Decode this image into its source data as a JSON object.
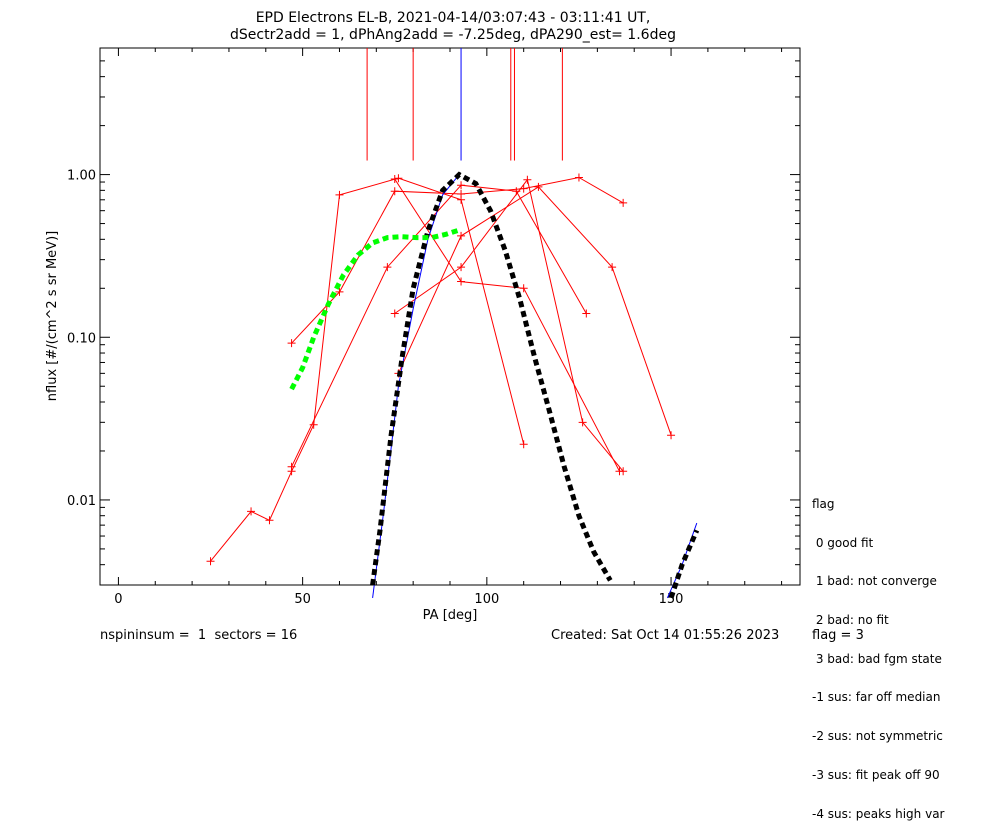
{
  "chart_data": {
    "type": "line",
    "title": "EPD Electrons EL-B, 2021-04-14/03:07:43 - 03:11:41 UT,",
    "subtitle": "dSectr2add = 1, dPhAng2add = -7.25deg, dPA290_est=   1.6deg",
    "xlabel": "PA [deg]",
    "ylabel": "nflux [#/(cm^2 s sr MeV)]",
    "xlim": [
      -5,
      185
    ],
    "ylim": [
      0.003,
      6.0
    ],
    "y_scale": "log",
    "x_ticks": [
      0,
      50,
      100,
      150
    ],
    "x_tick_labels": [
      "0",
      "50",
      "100",
      "150"
    ],
    "y_ticks": [
      0.01,
      0.1,
      1.0
    ],
    "y_tick_labels": [
      "0.01",
      "0.10",
      "1.00"
    ],
    "series": [
      {
        "color": "#ff0000",
        "style": "line-plus",
        "x": [
          25,
          36,
          41,
          47,
          53,
          60,
          76,
          93,
          110
        ],
        "y": [
          0.0042,
          0.0085,
          0.0075,
          0.015,
          0.029,
          0.75,
          0.95,
          0.7,
          0.022
        ]
      },
      {
        "color": "#ff0000",
        "style": "line-plus",
        "x": [
          47,
          60,
          75,
          93,
          110,
          125,
          137
        ],
        "y": [
          0.092,
          0.19,
          0.79,
          0.76,
          0.82,
          0.96,
          0.67
        ]
      },
      {
        "color": "#ff0000",
        "style": "line-plus",
        "x": [
          47,
          73,
          93,
          108,
          127
        ],
        "y": [
          0.016,
          0.27,
          0.86,
          0.79,
          0.14
        ]
      },
      {
        "color": "#ff0000",
        "style": "line-plus",
        "x": [
          75,
          93,
          111,
          126,
          137
        ],
        "y": [
          0.14,
          0.27,
          0.93,
          0.03,
          0.015
        ]
      },
      {
        "color": "#ff0000",
        "style": "line-plus",
        "x": [
          76,
          93,
          114,
          134,
          150
        ],
        "y": [
          0.06,
          0.42,
          0.84,
          0.27,
          0.025
        ]
      },
      {
        "color": "#ff0000",
        "style": "line-plus",
        "x": [
          75,
          93,
          110,
          136
        ],
        "y": [
          0.94,
          0.22,
          0.2,
          0.015
        ]
      },
      {
        "color": "#0000ff",
        "style": "line",
        "x": [
          69,
          72,
          76,
          80,
          84,
          88,
          92.5
        ],
        "y": [
          0.0025,
          0.0085,
          0.05,
          0.15,
          0.4,
          0.75,
          1.0
        ]
      },
      {
        "color": "#0000ff",
        "style": "line",
        "x": [
          149,
          153,
          157
        ],
        "y": [
          0.0025,
          0.004,
          0.0072
        ]
      },
      {
        "color": "#000000",
        "style": "dashed-thick",
        "x": [
          69,
          71,
          74,
          77,
          80,
          84,
          88,
          92.5,
          97,
          101,
          105,
          109,
          113,
          117,
          121,
          125,
          129,
          133.5
        ],
        "y": [
          0.003,
          0.0065,
          0.025,
          0.075,
          0.2,
          0.45,
          0.8,
          1.0,
          0.88,
          0.6,
          0.34,
          0.17,
          0.075,
          0.035,
          0.016,
          0.008,
          0.0048,
          0.0032
        ]
      },
      {
        "color": "#000000",
        "style": "dashed-thick",
        "x": [
          150,
          153,
          157
        ],
        "y": [
          0.0025,
          0.004,
          0.0065
        ]
      },
      {
        "color": "#00ff00",
        "style": "dashed-thick",
        "x": [
          47,
          50,
          53,
          57,
          61,
          65,
          69,
          73,
          77,
          81,
          85,
          89,
          93
        ],
        "y": [
          0.048,
          0.065,
          0.1,
          0.16,
          0.24,
          0.32,
          0.38,
          0.41,
          0.415,
          0.41,
          0.41,
          0.43,
          0.46
        ]
      }
    ],
    "vlines": [
      {
        "x": 67.5,
        "color": "#ff0000"
      },
      {
        "x": 80,
        "color": "#ff0000"
      },
      {
        "x": 106.5,
        "color": "#ff0000"
      },
      {
        "x": 107.5,
        "color": "#ff0000"
      },
      {
        "x": 120.5,
        "color": "#ff0000"
      },
      {
        "x": 93,
        "color": "#0000ff"
      }
    ],
    "legend_title": "flag",
    "legend": [
      " 0 good fit",
      " 1 bad: not converge",
      " 2 bad: no fit",
      " 3 bad: bad fgm state",
      "-1 sus: far off median",
      "-2 sus: not symmetric",
      "-3 sus: fit peak off 90",
      "-4 sus: peaks high var"
    ],
    "legend_placement": "bottom-right outside plot",
    "grid": false
  },
  "footer": {
    "left": "nspininsum =  1  sectors = 16",
    "created": "Created: Sat Oct 14 01:55:26 2023",
    "flag": "flag = 3"
  }
}
